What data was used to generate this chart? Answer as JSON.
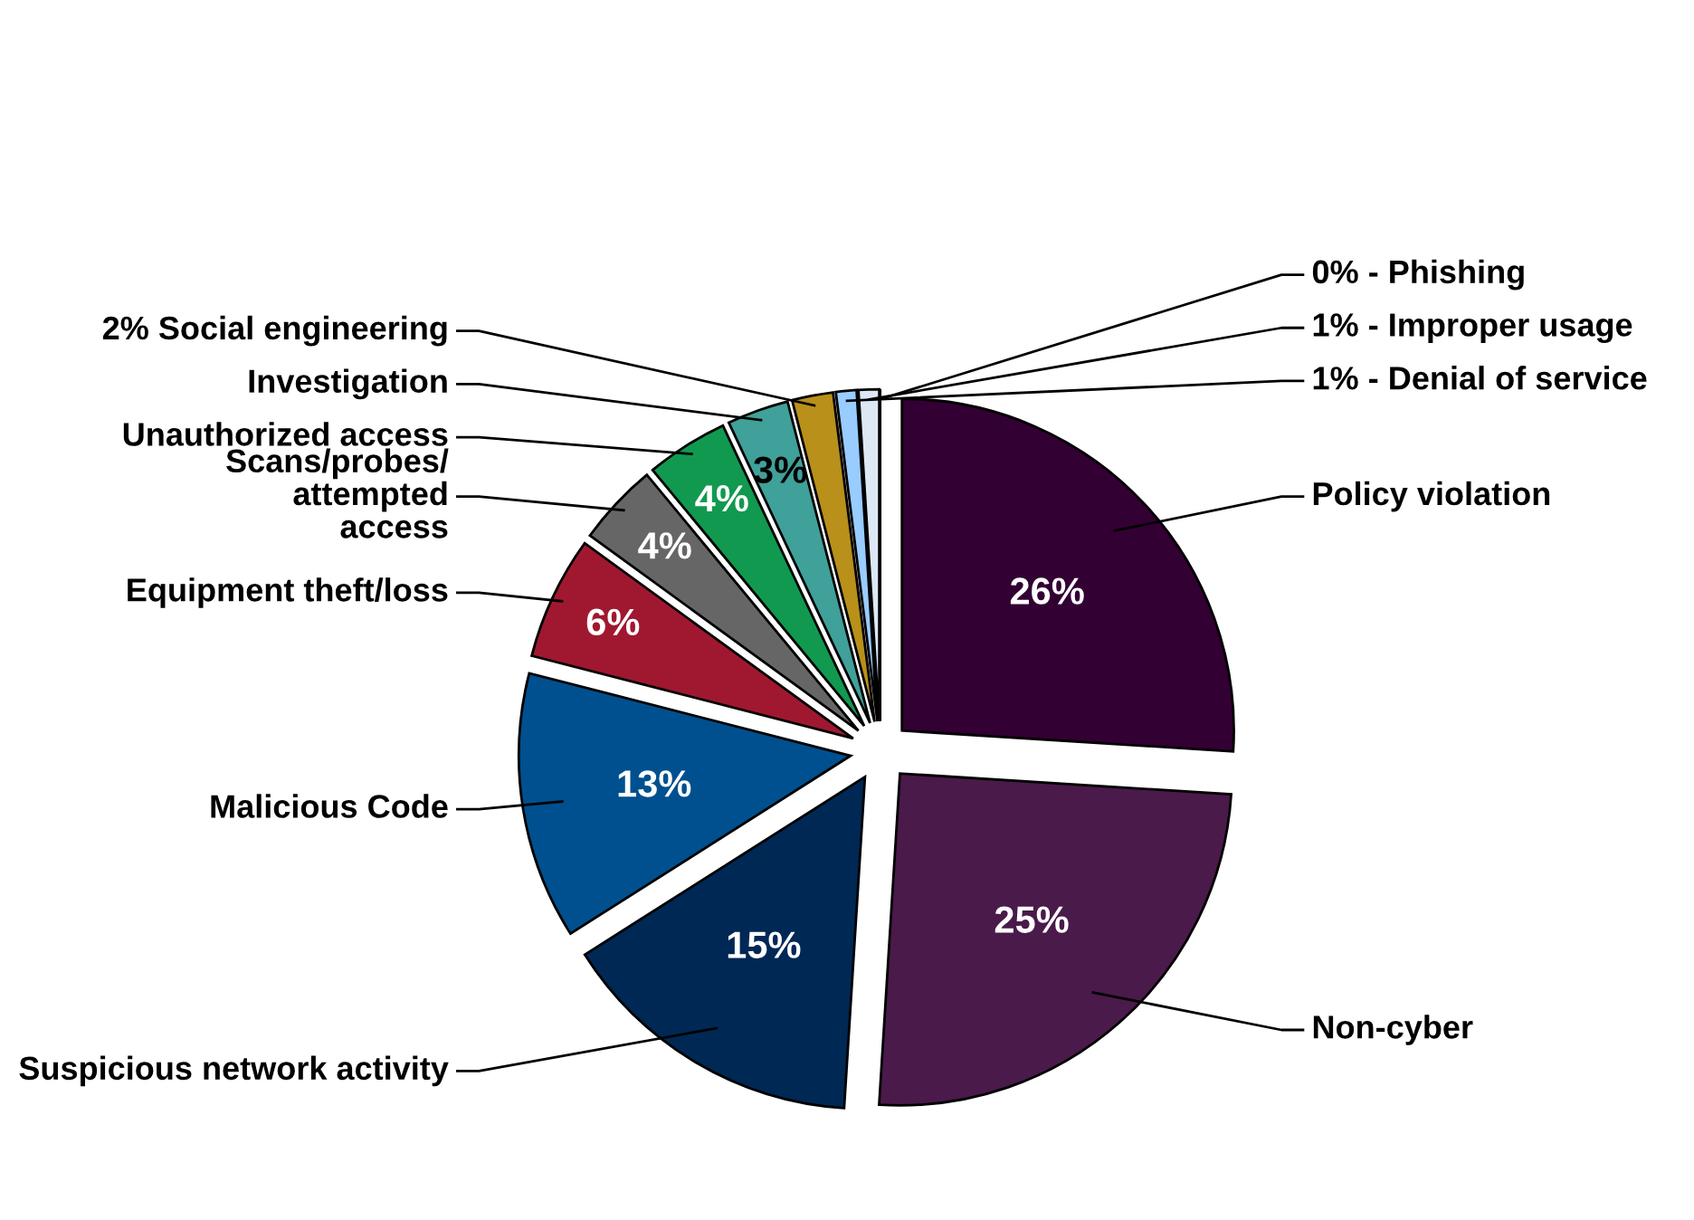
{
  "chart_data": {
    "type": "pie",
    "categories": [
      "Policy violation",
      "Non-cyber",
      "Suspicious network activity",
      "Malicious Code",
      "Equipment theft/loss",
      "Scans/probes/\nattempted\naccess",
      "Unauthorized access",
      "Investigation",
      "Social engineering",
      "Denial of service",
      "Improper usage",
      "Phishing"
    ],
    "values": [
      26,
      25,
      15,
      13,
      6,
      4,
      4,
      3,
      2,
      1,
      1,
      0
    ],
    "value_labels": [
      "26%",
      "25%",
      "15%",
      "13%",
      "6%",
      "4%",
      "4%",
      "3%",
      "2%",
      "1% -",
      "1% -",
      "0% -"
    ],
    "colors": [
      "#330033",
      "#4a1a4a",
      "#002855",
      "#00508f",
      "#a01830",
      "#666666",
      "#119950",
      "#40a09a",
      "#b8901a",
      "#99ccff",
      "#dde8f5",
      "#ffffff"
    ],
    "legend": false
  }
}
